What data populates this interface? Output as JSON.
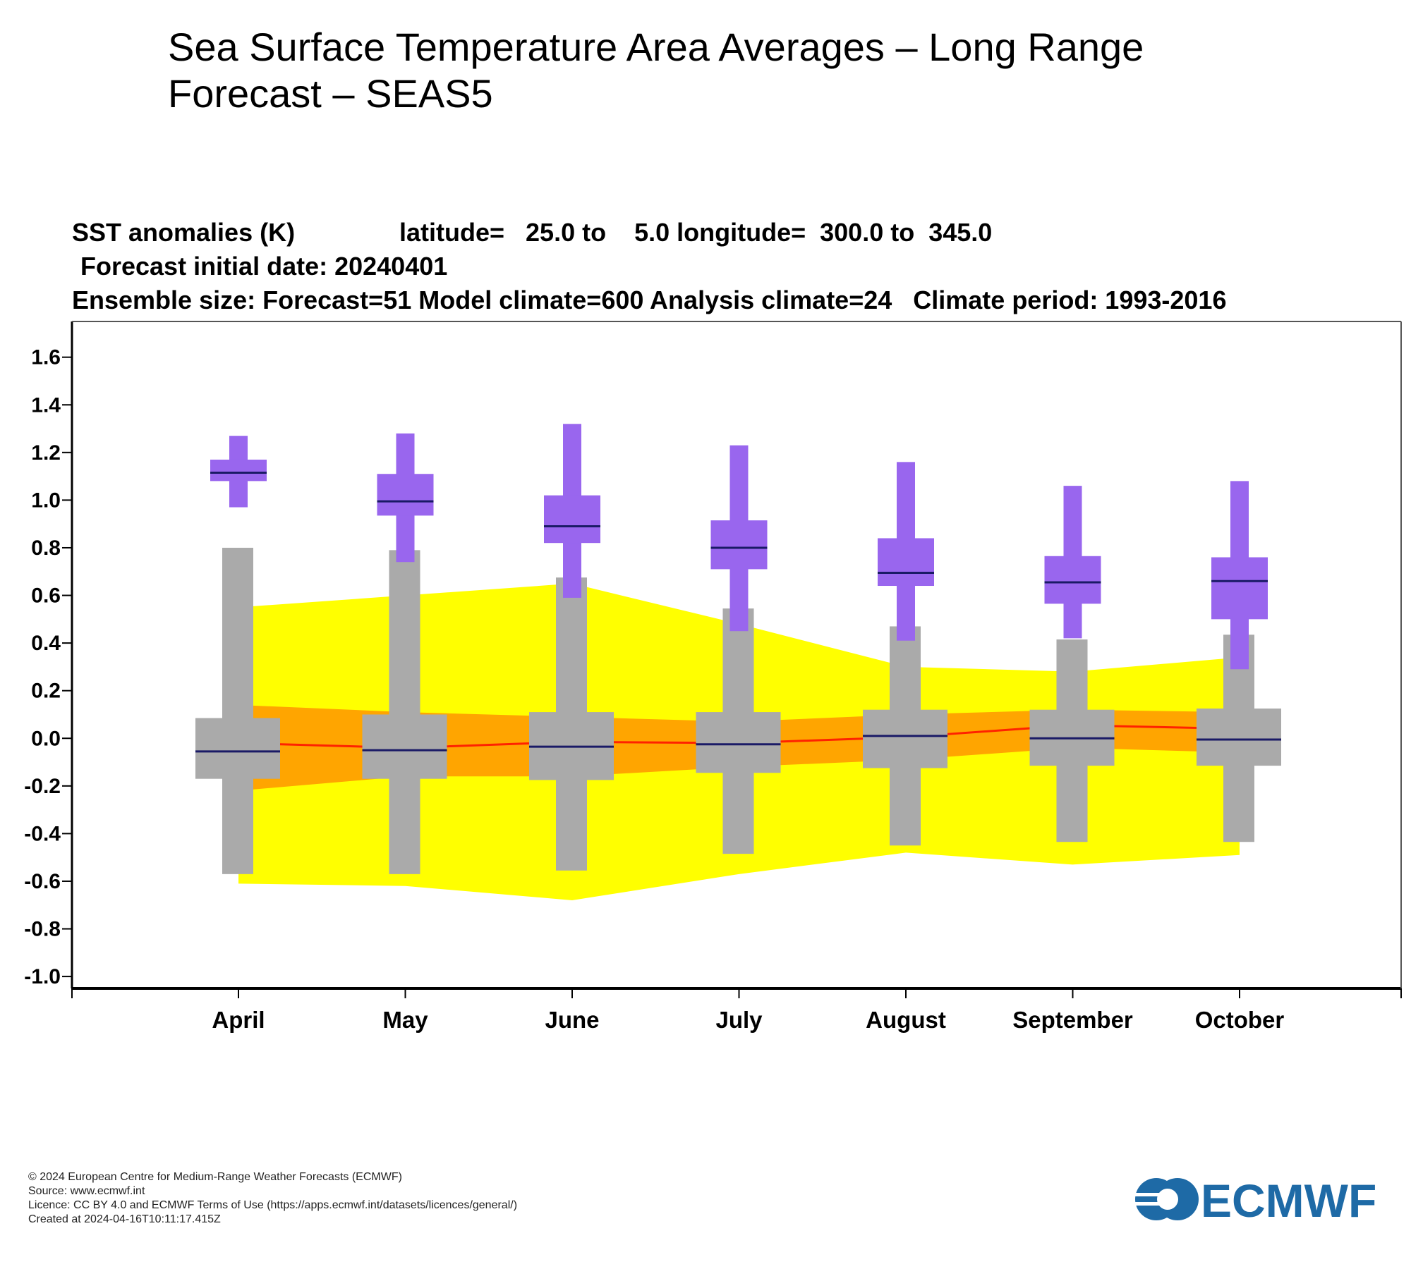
{
  "page": {
    "title": "Sea Surface Temperature Area Averages – Long Range Forecast – SEAS5"
  },
  "chart_data": {
    "type": "box",
    "header_lines": [
      {
        "id": "var",
        "text": "SST anomalies (K)"
      },
      {
        "id": "lat",
        "text": "latitude=   25.0 to    5.0 longitude=  300.0 to  345.0"
      },
      {
        "id": "init",
        "text": "Forecast initial date: 20240401"
      },
      {
        "id": "ens",
        "text": "Ensemble size: Forecast=51 Model climate=600 Analysis climate=24   Climate period: 1993-2016"
      }
    ],
    "ylim": [
      -1.05,
      1.75
    ],
    "yticks": [
      "1.6",
      "1.4",
      "1.2",
      "1.0",
      "0.8",
      "0.6",
      "0.4",
      "0.2",
      "0.0",
      "-0.2",
      "-0.4",
      "-0.6",
      "-0.8",
      "-1.0"
    ],
    "categories": [
      "April",
      "May",
      "June",
      "July",
      "August",
      "September",
      "October"
    ],
    "colors": {
      "forecast": "#9966ee",
      "model_climate": "#aaaaaa",
      "analysis_outer": "#ffff00",
      "analysis_inner": "#ffa500",
      "analysis_line": "#ff2200",
      "median": "#1a1a66"
    },
    "forecast": [
      {
        "min": 0.97,
        "q1": 1.08,
        "median": 1.115,
        "q3": 1.17,
        "max": 1.27
      },
      {
        "min": 0.74,
        "q1": 0.935,
        "median": 0.995,
        "q3": 1.11,
        "max": 1.28
      },
      {
        "min": 0.59,
        "q1": 0.82,
        "median": 0.89,
        "q3": 1.02,
        "max": 1.32
      },
      {
        "min": 0.45,
        "q1": 0.71,
        "median": 0.8,
        "q3": 0.915,
        "max": 1.23
      },
      {
        "min": 0.41,
        "q1": 0.64,
        "median": 0.695,
        "q3": 0.84,
        "max": 1.16
      },
      {
        "min": 0.42,
        "q1": 0.565,
        "median": 0.655,
        "q3": 0.765,
        "max": 1.06
      },
      {
        "min": 0.29,
        "q1": 0.5,
        "median": 0.66,
        "q3": 0.76,
        "max": 1.08
      }
    ],
    "model_climate": [
      {
        "min": -0.57,
        "q1": -0.17,
        "median": -0.055,
        "q3": 0.085,
        "max": 0.8
      },
      {
        "min": -0.57,
        "q1": -0.17,
        "median": -0.05,
        "q3": 0.1,
        "max": 0.79
      },
      {
        "min": -0.555,
        "q1": -0.175,
        "median": -0.035,
        "q3": 0.11,
        "max": 0.675
      },
      {
        "min": -0.485,
        "q1": -0.145,
        "median": -0.025,
        "q3": 0.11,
        "max": 0.545
      },
      {
        "min": -0.45,
        "q1": -0.125,
        "median": 0.01,
        "q3": 0.12,
        "max": 0.47
      },
      {
        "min": -0.435,
        "q1": -0.115,
        "median": 0.0,
        "q3": 0.12,
        "max": 0.415
      },
      {
        "min": -0.435,
        "q1": -0.115,
        "median": -0.005,
        "q3": 0.125,
        "max": 0.435
      }
    ],
    "analysis_climate": {
      "x_pos": [
        0.0,
        1.0,
        2.0,
        3.0,
        4.0,
        5.0,
        6.0
      ],
      "outer_high": [
        0.55,
        0.6,
        0.65,
        0.48,
        0.3,
        0.28,
        0.34
      ],
      "outer_low": [
        -0.61,
        -0.62,
        -0.68,
        -0.57,
        -0.48,
        -0.53,
        -0.49
      ],
      "inner_high": [
        0.14,
        0.11,
        0.09,
        0.07,
        0.1,
        0.12,
        0.11
      ],
      "inner_low": [
        -0.22,
        -0.16,
        -0.16,
        -0.12,
        -0.09,
        -0.04,
        -0.06
      ],
      "median": [
        -0.02,
        -0.04,
        -0.015,
        -0.02,
        0.005,
        0.055,
        0.04
      ]
    }
  },
  "footer": {
    "copyright": "© 2024 European Centre for Medium-Range Weather Forecasts (ECMWF)",
    "source": "Source: www.ecmwf.int",
    "licence": "Licence: CC BY 4.0 and ECMWF Terms of Use (https://apps.ecmwf.int/datasets/licences/general/)",
    "created": "Created at 2024-04-16T10:11:17.415Z"
  },
  "logo": {
    "text": "ECMWF"
  }
}
